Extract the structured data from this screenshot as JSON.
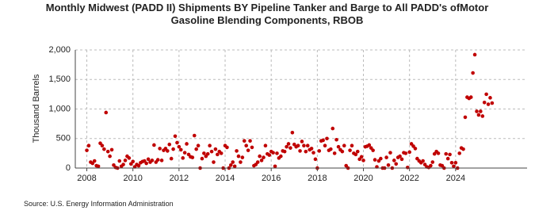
{
  "chart_data": {
    "type": "scatter",
    "title": [
      "Monthly Midwest (PADD II) Shipments BY Pipeline Tanker and Barge to All PADD's ofMotor",
      "Gasoline Blending Components, RBOB"
    ],
    "y_label": "Thousand Barrels",
    "source": "Source: U.S. Energy Information Administration",
    "color": "#c00000",
    "grid": true,
    "xlim": [
      2007.5,
      2027.1
    ],
    "xticks": [
      2008,
      2010,
      2012,
      2014,
      2016,
      2018,
      2020,
      2022,
      2024
    ],
    "ylim": [
      0,
      2000
    ],
    "yticks": [
      0,
      500,
      {
        "value": 1000,
        "label": "1,000"
      },
      {
        "value": 1500,
        "label": "1,500"
      },
      {
        "value": 2000,
        "label": "2,000"
      }
    ],
    "x": [
      2008.0,
      2008.083,
      2008.167,
      2008.25,
      2008.333,
      2008.417,
      2008.5,
      2008.583,
      2008.667,
      2008.75,
      2008.833,
      2008.917,
      2009.0,
      2009.083,
      2009.167,
      2009.25,
      2009.333,
      2009.417,
      2009.5,
      2009.583,
      2009.667,
      2009.75,
      2009.833,
      2009.917,
      2010.0,
      2010.083,
      2010.167,
      2010.25,
      2010.333,
      2010.417,
      2010.5,
      2010.583,
      2010.667,
      2010.75,
      2010.833,
      2010.917,
      2011.0,
      2011.083,
      2011.167,
      2011.25,
      2011.333,
      2011.417,
      2011.5,
      2011.583,
      2011.667,
      2011.75,
      2011.833,
      2011.917,
      2012.0,
      2012.083,
      2012.167,
      2012.25,
      2012.333,
      2012.417,
      2012.5,
      2012.583,
      2012.667,
      2012.75,
      2012.833,
      2012.917,
      2013.0,
      2013.083,
      2013.167,
      2013.25,
      2013.333,
      2013.417,
      2013.5,
      2013.583,
      2013.667,
      2013.75,
      2013.833,
      2013.917,
      2014.0,
      2014.083,
      2014.167,
      2014.25,
      2014.333,
      2014.417,
      2014.5,
      2014.583,
      2014.667,
      2014.75,
      2014.833,
      2014.917,
      2015.0,
      2015.083,
      2015.167,
      2015.25,
      2015.333,
      2015.417,
      2015.5,
      2015.583,
      2015.667,
      2015.75,
      2015.833,
      2015.917,
      2016.0,
      2016.083,
      2016.167,
      2016.25,
      2016.333,
      2016.417,
      2016.5,
      2016.583,
      2016.667,
      2016.75,
      2016.833,
      2016.917,
      2017.0,
      2017.083,
      2017.167,
      2017.25,
      2017.333,
      2017.417,
      2017.5,
      2017.583,
      2017.667,
      2017.75,
      2017.833,
      2017.917,
      2018.0,
      2018.083,
      2018.167,
      2018.25,
      2018.333,
      2018.417,
      2018.5,
      2018.583,
      2018.667,
      2018.75,
      2018.833,
      2018.917,
      2019.0,
      2019.083,
      2019.167,
      2019.25,
      2019.333,
      2019.417,
      2019.5,
      2019.583,
      2019.667,
      2019.75,
      2019.833,
      2019.917,
      2020.0,
      2020.083,
      2020.167,
      2020.25,
      2020.333,
      2020.417,
      2020.5,
      2020.583,
      2020.667,
      2020.75,
      2020.833,
      2020.917,
      2021.0,
      2021.083,
      2021.167,
      2021.25,
      2021.333,
      2021.417,
      2021.5,
      2021.583,
      2021.667,
      2021.75,
      2021.833,
      2021.917,
      2022.0,
      2022.083,
      2022.167,
      2022.25,
      2022.333,
      2022.417,
      2022.5,
      2022.583,
      2022.667,
      2022.75,
      2022.833,
      2022.917,
      2023.0,
      2023.083,
      2023.167,
      2023.25,
      2023.333,
      2023.417,
      2023.5,
      2023.583,
      2023.667,
      2023.75,
      2023.833,
      2023.917,
      2024.0,
      2024.083,
      2024.167,
      2024.25,
      2024.333,
      2024.417,
      2024.5,
      2024.583,
      2024.667,
      2024.75,
      2024.833,
      2024.917,
      2025.0,
      2025.083,
      2025.167,
      2025.25,
      2025.333,
      2025.417,
      2025.5,
      2025.583
    ],
    "values": [
      300,
      380,
      100,
      80,
      120,
      40,
      30,
      420,
      380,
      320,
      940,
      280,
      200,
      310,
      50,
      10,
      0,
      120,
      30,
      60,
      130,
      200,
      170,
      70,
      110,
      20,
      60,
      40,
      90,
      110,
      120,
      80,
      150,
      100,
      130,
      390,
      100,
      140,
      330,
      130,
      300,
      330,
      290,
      400,
      160,
      320,
      540,
      430,
      360,
      310,
      170,
      260,
      410,
      230,
      190,
      180,
      550,
      320,
      380,
      0,
      160,
      250,
      200,
      240,
      380,
      280,
      100,
      320,
      230,
      280,
      250,
      0,
      380,
      350,
      0,
      50,
      100,
      30,
      290,
      200,
      100,
      180,
      460,
      380,
      300,
      460,
      350,
      40,
      60,
      100,
      200,
      130,
      180,
      380,
      240,
      220,
      280,
      260,
      30,
      250,
      170,
      200,
      290,
      280,
      360,
      410,
      340,
      600,
      400,
      360,
      380,
      290,
      450,
      380,
      280,
      380,
      310,
      330,
      260,
      150,
      0,
      290,
      460,
      470,
      380,
      500,
      300,
      320,
      670,
      250,
      480,
      360,
      310,
      280,
      380,
      40,
      0,
      300,
      380,
      250,
      230,
      280,
      150,
      190,
      130,
      360,
      370,
      390,
      340,
      300,
      140,
      20,
      120,
      160,
      0,
      0,
      180,
      50,
      260,
      0,
      130,
      70,
      180,
      200,
      150,
      260,
      250,
      10,
      270,
      410,
      370,
      330,
      160,
      120,
      90,
      120,
      60,
      20,
      10,
      40,
      100,
      240,
      280,
      250,
      50,
      40,
      0,
      240,
      160,
      230,
      90,
      30,
      90,
      0,
      250,
      340,
      320,
      860,
      1200,
      1180,
      1200,
      1610,
      1920,
      960,
      900,
      960,
      880,
      1110,
      1250,
      1080,
      1190,
      1100
    ]
  }
}
